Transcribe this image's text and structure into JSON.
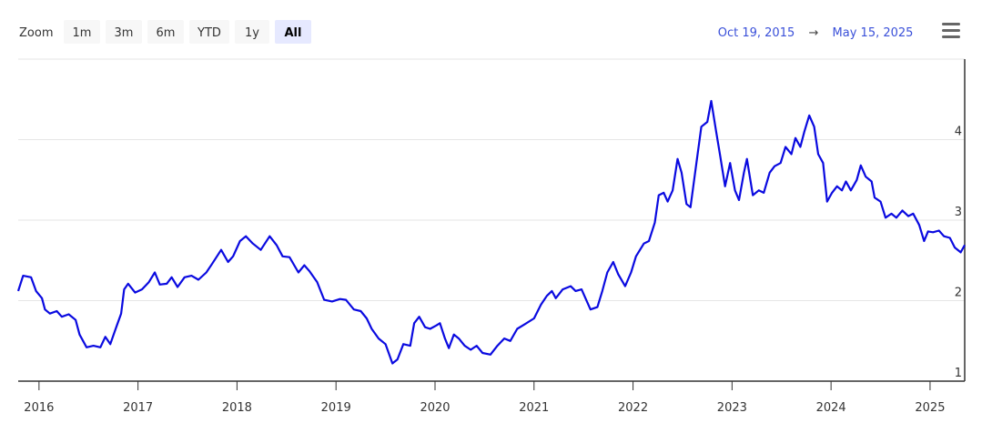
{
  "chart_data": {
    "type": "line",
    "zoom_label": "Zoom",
    "zoom_buttons": [
      "1m",
      "3m",
      "6m",
      "YTD",
      "1y",
      "All"
    ],
    "selected_button": 5,
    "range_from": "Oct 19, 2015",
    "range_arrow": "→",
    "range_to": "May 15, 2025",
    "x": [
      2015.79,
      2015.84,
      2015.92,
      2015.97,
      2016.03,
      2016.06,
      2016.11,
      2016.18,
      2016.23,
      2016.3,
      2016.37,
      2016.41,
      2016.48,
      2016.55,
      2016.62,
      2016.67,
      2016.72,
      2016.78,
      2016.83,
      2016.86,
      2016.9,
      2016.97,
      2017.04,
      2017.11,
      2017.17,
      2017.22,
      2017.29,
      2017.34,
      2017.4,
      2017.47,
      2017.54,
      2017.61,
      2017.69,
      2017.75,
      2017.84,
      2017.91,
      2017.96,
      2018.03,
      2018.09,
      2018.16,
      2018.24,
      2018.33,
      2018.4,
      2018.46,
      2018.53,
      2018.62,
      2018.68,
      2018.73,
      2018.81,
      2018.88,
      2018.96,
      2019.04,
      2019.1,
      2019.18,
      2019.25,
      2019.31,
      2019.36,
      2019.43,
      2019.5,
      2019.57,
      2019.62,
      2019.68,
      2019.75,
      2019.79,
      2019.84,
      2019.9,
      2019.95,
      2020.01,
      2020.05,
      2020.1,
      2020.14,
      2020.19,
      2020.24,
      2020.3,
      2020.36,
      2020.42,
      2020.48,
      2020.56,
      2020.63,
      2020.7,
      2020.76,
      2020.83,
      2020.91,
      2021.0,
      2021.07,
      2021.13,
      2021.18,
      2021.22,
      2021.29,
      2021.37,
      2021.42,
      2021.48,
      2021.52,
      2021.57,
      2021.64,
      2021.69,
      2021.74,
      2021.8,
      2021.85,
      2021.92,
      2021.98,
      2022.03,
      2022.11,
      2022.16,
      2022.22,
      2022.26,
      2022.31,
      2022.35,
      2022.4,
      2022.45,
      2022.49,
      2022.54,
      2022.58,
      2022.64,
      2022.69,
      2022.75,
      2022.79,
      2022.84,
      2022.88,
      2022.93,
      2022.98,
      2023.03,
      2023.07,
      2023.12,
      2023.15,
      2023.21,
      2023.27,
      2023.32,
      2023.38,
      2023.43,
      2023.49,
      2023.54,
      2023.6,
      2023.64,
      2023.69,
      2023.73,
      2023.78,
      2023.83,
      2023.87,
      2023.92,
      2023.96,
      2024.01,
      2024.06,
      2024.11,
      2024.15,
      2024.2,
      2024.26,
      2024.3,
      2024.35,
      2024.41,
      2024.44,
      2024.5,
      2024.55,
      2024.61,
      2024.66,
      2024.72,
      2024.78,
      2024.83,
      2024.89,
      2024.94,
      2024.98,
      2025.03,
      2025.09,
      2025.14,
      2025.2,
      2025.25,
      2025.31,
      2025.35
    ],
    "series": [
      {
        "color": "#0a0ae0",
        "values": [
          2.12,
          2.31,
          2.29,
          2.12,
          2.03,
          1.89,
          1.84,
          1.87,
          1.8,
          1.83,
          1.76,
          1.58,
          1.42,
          1.44,
          1.42,
          1.55,
          1.46,
          1.67,
          1.84,
          2.14,
          2.21,
          2.1,
          2.14,
          2.23,
          2.35,
          2.2,
          2.21,
          2.29,
          2.17,
          2.29,
          2.31,
          2.26,
          2.35,
          2.46,
          2.63,
          2.48,
          2.55,
          2.74,
          2.8,
          2.71,
          2.63,
          2.8,
          2.69,
          2.55,
          2.54,
          2.35,
          2.44,
          2.37,
          2.23,
          2.01,
          1.99,
          2.02,
          2.01,
          1.89,
          1.87,
          1.78,
          1.65,
          1.53,
          1.46,
          1.22,
          1.27,
          1.46,
          1.44,
          1.72,
          1.8,
          1.67,
          1.65,
          1.69,
          1.72,
          1.53,
          1.41,
          1.58,
          1.53,
          1.44,
          1.39,
          1.44,
          1.35,
          1.33,
          1.44,
          1.53,
          1.5,
          1.65,
          1.71,
          1.78,
          1.95,
          2.06,
          2.12,
          2.03,
          2.14,
          2.18,
          2.12,
          2.14,
          2.03,
          1.89,
          1.92,
          2.12,
          2.35,
          2.48,
          2.33,
          2.18,
          2.35,
          2.55,
          2.71,
          2.74,
          2.97,
          3.31,
          3.34,
          3.23,
          3.37,
          3.76,
          3.59,
          3.2,
          3.16,
          3.71,
          4.16,
          4.22,
          4.48,
          4.1,
          3.8,
          3.42,
          3.71,
          3.37,
          3.25,
          3.59,
          3.76,
          3.31,
          3.37,
          3.34,
          3.59,
          3.67,
          3.71,
          3.91,
          3.82,
          4.02,
          3.91,
          4.1,
          4.3,
          4.16,
          3.82,
          3.71,
          3.23,
          3.34,
          3.42,
          3.37,
          3.48,
          3.37,
          3.5,
          3.68,
          3.54,
          3.48,
          3.28,
          3.23,
          3.03,
          3.08,
          3.03,
          3.12,
          3.05,
          3.08,
          2.94,
          2.74,
          2.86,
          2.85,
          2.87,
          2.8,
          2.78,
          2.66,
          2.6,
          2.69
        ]
      }
    ],
    "xlim": [
      2015.79,
      2025.35
    ],
    "xticks": [
      2016,
      2017,
      2018,
      2019,
      2020,
      2021,
      2022,
      2023,
      2024,
      2025
    ],
    "ylim": [
      1,
      5
    ],
    "yticks": [
      1,
      2,
      3,
      4
    ],
    "grid": true
  }
}
